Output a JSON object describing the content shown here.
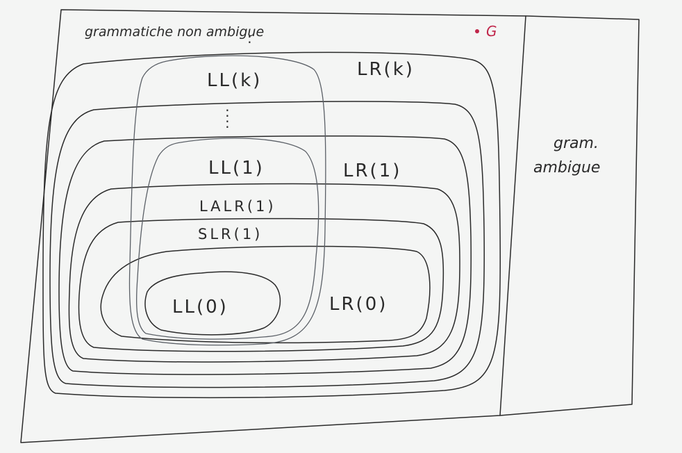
{
  "diagram": {
    "outer_label": "grammatiche non ambigue",
    "outer_dots": ":",
    "point_label": "G",
    "side_label_line1": "gram.",
    "side_label_line2": "ambigue",
    "sets": {
      "llk": "LL(k)",
      "lrk": "LR(k)",
      "dots": ":",
      "ll1": "LL(1)",
      "lr1": "LR(1)",
      "lalr1": "LALR(1)",
      "slr1": "SLR(1)",
      "ll0": "LL(0)",
      "lr0": "LR(0)"
    },
    "colors": {
      "ink": "#2a2a2a",
      "point": "#c0264a",
      "paper": "#f4f5f4"
    }
  }
}
